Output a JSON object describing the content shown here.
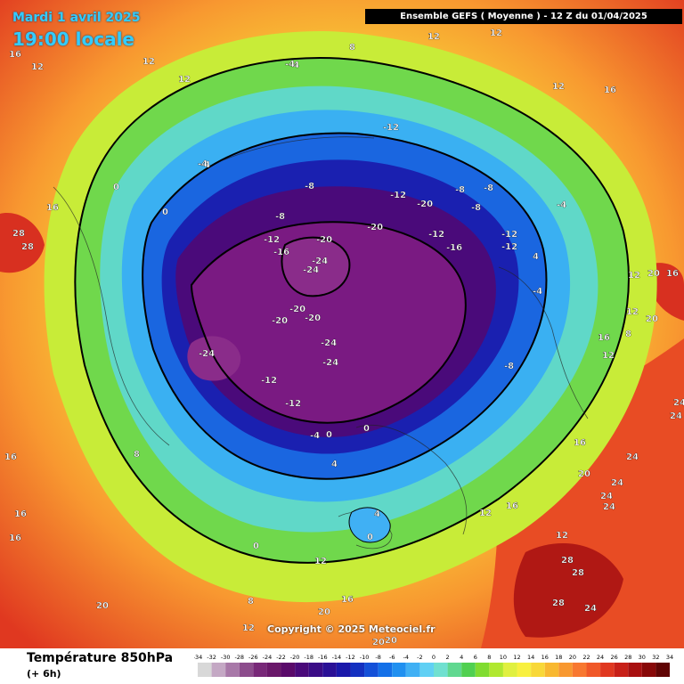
{
  "header": {
    "date": "Mardi 1 avril 2025",
    "local_time": "19:00 locale",
    "run_info": "Ensemble GEFS  ( Moyenne )  -  12 Z du 01/04/2025"
  },
  "copyright": "Copyright © 2025 Meteociel.fr",
  "legend": {
    "title": "Température 850hPa",
    "subtitle": "(+ 6h)",
    "ticks": [
      "-34",
      "-32",
      "-30",
      "-28",
      "-26",
      "-24",
      "-22",
      "-20",
      "-18",
      "-16",
      "-14",
      "-12",
      "-10",
      "-8",
      "-6",
      "-4",
      "-2",
      "0",
      "2",
      "4",
      "6",
      "8",
      "10",
      "12",
      "14",
      "16",
      "18",
      "20",
      "22",
      "24",
      "26",
      "28",
      "30",
      "32",
      "34"
    ],
    "colors": [
      "#d8d8d8",
      "#c4a8c4",
      "#a878a8",
      "#8c4c8c",
      "#782878",
      "#6a186a",
      "#5a0a6a",
      "#4a0a7a",
      "#3a0c86",
      "#2a1096",
      "#1a18aa",
      "#1430c0",
      "#1450d8",
      "#1470e8",
      "#2090f0",
      "#40b0f4",
      "#60d0f4",
      "#70e0d0",
      "#60d890",
      "#50d050",
      "#80dc30",
      "#b0e830",
      "#e0f040",
      "#f8f040",
      "#f8d838",
      "#f8b830",
      "#f89830",
      "#f87830",
      "#f05828",
      "#e03820",
      "#c82018",
      "#a81010",
      "#880808",
      "#600404"
    ]
  },
  "map_labels": [
    {
      "text": "16"
    },
    {
      "text": "12"
    },
    {
      "text": "12"
    },
    {
      "text": "12"
    },
    {
      "text": "8"
    },
    {
      "text": "-4"
    },
    {
      "text": "12"
    },
    {
      "text": "12"
    },
    {
      "text": "16"
    },
    {
      "text": "-12"
    },
    {
      "text": "-4"
    },
    {
      "text": "-8"
    },
    {
      "text": "-12"
    },
    {
      "text": "-20"
    },
    {
      "text": "-20"
    },
    {
      "text": "-24"
    },
    {
      "text": "-24"
    },
    {
      "text": "-16"
    },
    {
      "text": "-12"
    },
    {
      "text": "-8"
    },
    {
      "text": "-12"
    },
    {
      "text": "-16"
    },
    {
      "text": "-20"
    },
    {
      "text": "-20"
    },
    {
      "text": "-24"
    },
    {
      "text": "-24"
    },
    {
      "text": "-24"
    },
    {
      "text": "-20"
    },
    {
      "text": "-20"
    },
    {
      "text": "-12"
    },
    {
      "text": "-12"
    },
    {
      "text": "-12"
    },
    {
      "text": "-8"
    },
    {
      "text": "-8"
    },
    {
      "text": "-8"
    },
    {
      "text": "-4"
    },
    {
      "text": "-4"
    },
    {
      "text": "0"
    },
    {
      "text": "0"
    },
    {
      "text": "4"
    },
    {
      "text": "8"
    },
    {
      "text": "12"
    },
    {
      "text": "16"
    },
    {
      "text": "16"
    },
    {
      "text": "16"
    },
    {
      "text": "20"
    },
    {
      "text": "24"
    },
    {
      "text": "24"
    },
    {
      "text": "24"
    },
    {
      "text": "28"
    },
    {
      "text": "28"
    },
    {
      "text": "24"
    },
    {
      "text": "28"
    },
    {
      "text": "24"
    },
    {
      "text": "20"
    },
    {
      "text": "20"
    },
    {
      "text": "20"
    },
    {
      "text": "16"
    },
    {
      "text": "12"
    },
    {
      "text": "12"
    },
    {
      "text": "8"
    },
    {
      "text": "0"
    },
    {
      "text": "0"
    },
    {
      "text": "4"
    },
    {
      "text": "12"
    },
    {
      "text": "16"
    },
    {
      "text": "16"
    },
    {
      "text": "12"
    },
    {
      "text": "8"
    },
    {
      "text": "16"
    },
    {
      "text": "20"
    },
    {
      "text": "20"
    },
    {
      "text": "28"
    },
    {
      "text": "28"
    },
    {
      "text": "16"
    },
    {
      "text": "12"
    },
    {
      "text": "-4"
    },
    {
      "text": "-4"
    },
    {
      "text": "0"
    },
    {
      "text": "0"
    },
    {
      "text": "-12"
    },
    {
      "text": "4"
    },
    {
      "text": "12"
    },
    {
      "text": "20"
    },
    {
      "text": "24"
    },
    {
      "text": "24"
    },
    {
      "text": "12"
    },
    {
      "text": "16"
    },
    {
      "text": "-4"
    },
    {
      "text": "-8"
    }
  ]
}
